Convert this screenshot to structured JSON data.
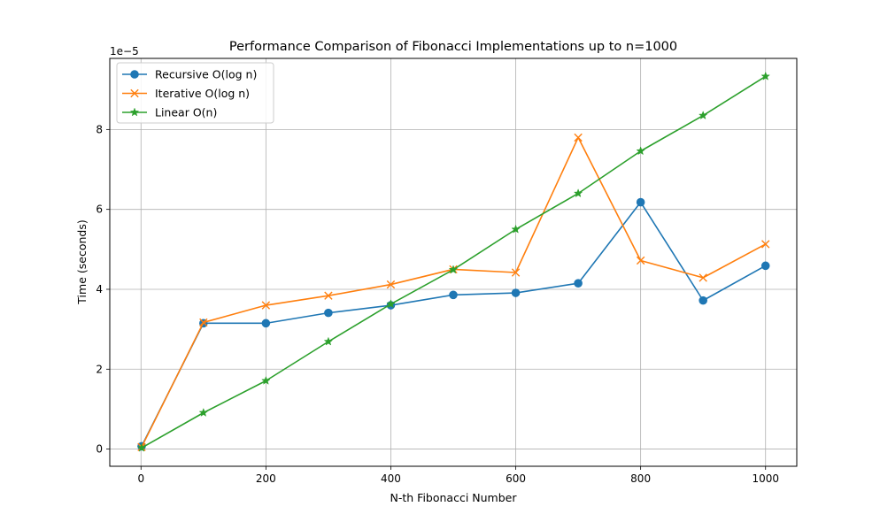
{
  "chart_data": {
    "type": "line",
    "title": "Performance Comparison of Fibonacci Implementations up to n=1000",
    "xlabel": "N-th Fibonacci Number",
    "ylabel": "Time (seconds)",
    "offset_text": "1e−5",
    "xlim": [
      -50,
      1050
    ],
    "ylim": [
      -0.43,
      9.78
    ],
    "x_ticks": [
      0,
      200,
      400,
      600,
      800,
      1000
    ],
    "y_ticks": [
      0,
      2,
      4,
      6,
      8
    ],
    "grid": true,
    "legend_position": "upper-left",
    "x": [
      1,
      100,
      200,
      300,
      400,
      500,
      600,
      700,
      800,
      900,
      1000
    ],
    "series": [
      {
        "name": "Recursive O(log n)",
        "color": "#1f77b4",
        "marker": "circle",
        "values": [
          0.07,
          3.15,
          3.15,
          3.41,
          3.6,
          3.86,
          3.91,
          4.15,
          6.18,
          3.72,
          4.59
        ]
      },
      {
        "name": "Iterative O(log n)",
        "color": "#ff7f0e",
        "marker": "x",
        "values": [
          0.05,
          3.17,
          3.6,
          3.84,
          4.12,
          4.5,
          4.42,
          7.8,
          4.72,
          4.29,
          5.13
        ]
      },
      {
        "name": "Linear O(n)",
        "color": "#2ca02c",
        "marker": "star",
        "values": [
          0.03,
          0.91,
          1.71,
          2.69,
          3.63,
          4.49,
          5.5,
          6.4,
          7.46,
          8.35,
          9.33
        ]
      }
    ]
  }
}
